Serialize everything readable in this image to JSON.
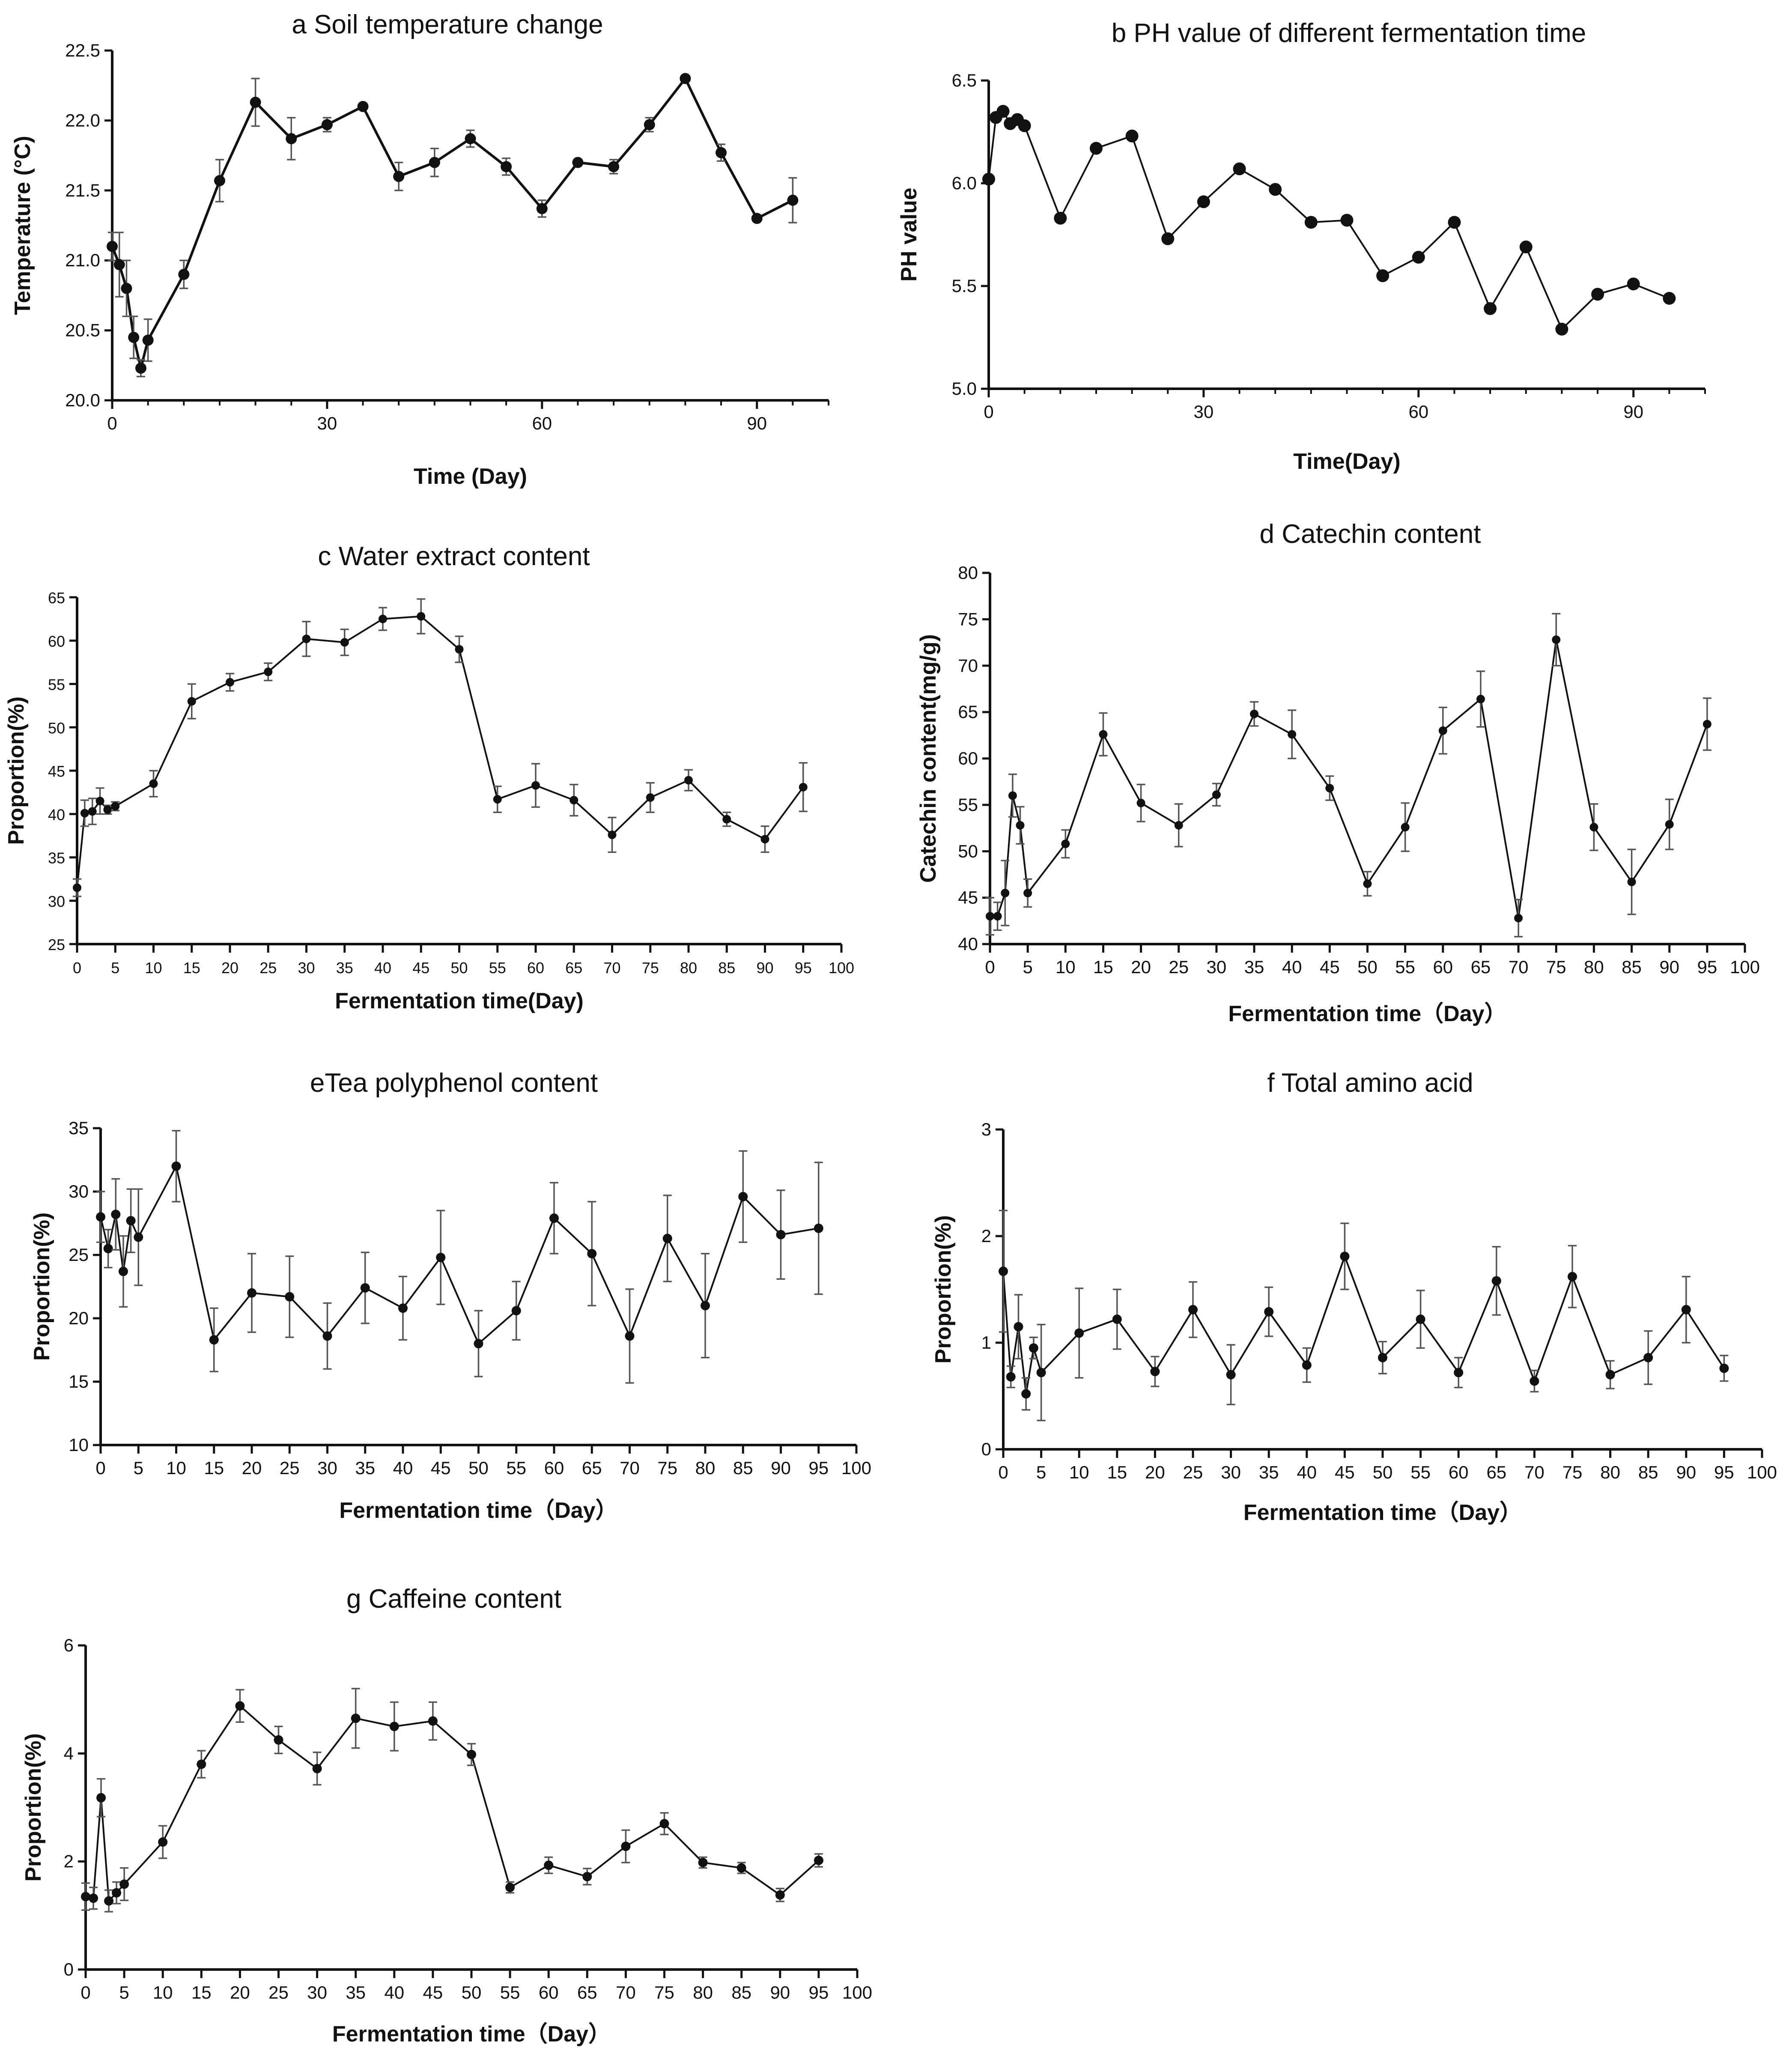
{
  "chart_data": [
    {
      "id": "a",
      "type": "line",
      "title": "a Soil temperature change",
      "xlabel": "Time (Day)",
      "ylabel": "Temperature (°C)",
      "xlim": [
        0,
        100
      ],
      "ylim": [
        20.0,
        22.5
      ],
      "xticks": [
        0,
        30,
        60,
        90
      ],
      "yticks": [
        20.0,
        20.5,
        21.0,
        21.5,
        22.0,
        22.5
      ],
      "ytick_labels": [
        "20.0",
        "20.5",
        "21.0",
        "21.5",
        "22.0",
        "22.5"
      ],
      "series": [
        {
          "name": "Temperature",
          "x": [
            0,
            1,
            2,
            3,
            4,
            5,
            10,
            15,
            20,
            25,
            30,
            35,
            40,
            45,
            50,
            55,
            60,
            65,
            70,
            75,
            80,
            85,
            90,
            95
          ],
          "values": [
            21.1,
            20.97,
            20.8,
            20.45,
            20.23,
            20.43,
            20.9,
            21.57,
            22.13,
            21.87,
            21.97,
            22.1,
            21.6,
            21.7,
            21.87,
            21.67,
            21.37,
            21.7,
            21.67,
            21.97,
            22.3,
            21.77,
            21.3,
            21.43
          ],
          "errors": [
            0.1,
            0.23,
            0.2,
            0.15,
            0.06,
            0.15,
            0.1,
            0.15,
            0.17,
            0.15,
            0.05,
            0.02,
            0.1,
            0.1,
            0.06,
            0.06,
            0.06,
            0.02,
            0.05,
            0.05,
            0.02,
            0.06,
            0.02,
            0.16
          ]
        }
      ]
    },
    {
      "id": "b",
      "type": "line",
      "title": "b PH value of different fermentation time",
      "xlabel": "Time(Day)",
      "ylabel": "PH value",
      "xlim": [
        0,
        100
      ],
      "ylim": [
        5.0,
        6.5
      ],
      "xticks": [
        0,
        30,
        60,
        90
      ],
      "yticks": [
        5.0,
        5.5,
        6.0,
        6.5
      ],
      "ytick_labels": [
        "5.0",
        "5.5",
        "6.0",
        "6.5"
      ],
      "series": [
        {
          "name": "PH",
          "x": [
            0,
            1,
            2,
            3,
            4,
            5,
            10,
            15,
            20,
            25,
            30,
            35,
            40,
            45,
            50,
            55,
            60,
            65,
            70,
            75,
            80,
            85,
            90,
            95
          ],
          "values": [
            6.02,
            6.32,
            6.35,
            6.29,
            6.31,
            6.28,
            5.83,
            6.17,
            6.23,
            5.73,
            5.91,
            6.07,
            5.97,
            5.81,
            5.82,
            5.55,
            5.64,
            5.81,
            5.39,
            5.69,
            5.29,
            5.46,
            5.51,
            5.44
          ],
          "errors": [
            0,
            0,
            0,
            0,
            0,
            0,
            0,
            0,
            0,
            0,
            0,
            0,
            0,
            0,
            0,
            0,
            0,
            0,
            0,
            0,
            0,
            0,
            0,
            0
          ]
        }
      ]
    },
    {
      "id": "c",
      "type": "line",
      "title": "c Water extract content",
      "xlabel": "Fermentation time(Day)",
      "ylabel": "Proportion(%)",
      "xlim": [
        0,
        100
      ],
      "ylim": [
        25,
        65
      ],
      "xticks": [
        0,
        5,
        10,
        15,
        20,
        25,
        30,
        35,
        40,
        45,
        50,
        55,
        60,
        65,
        70,
        75,
        80,
        85,
        90,
        95,
        100
      ],
      "yticks": [
        25,
        30,
        35,
        40,
        45,
        50,
        55,
        60,
        65
      ],
      "ytick_labels": [
        "25",
        "30",
        "35",
        "40",
        "45",
        "50",
        "55",
        "60",
        "65"
      ],
      "series": [
        {
          "name": "Water extract",
          "x": [
            0,
            1,
            2,
            3,
            4,
            5,
            10,
            15,
            20,
            25,
            30,
            35,
            40,
            45,
            50,
            55,
            60,
            65,
            70,
            75,
            80,
            85,
            90,
            95
          ],
          "values": [
            31.5,
            40.1,
            40.3,
            41.5,
            40.5,
            40.9,
            43.5,
            53.0,
            55.2,
            56.4,
            60.2,
            59.8,
            62.5,
            62.8,
            59.0,
            41.7,
            43.3,
            41.6,
            37.6,
            41.9,
            43.9,
            39.4,
            37.1,
            43.1
          ],
          "errors": [
            1.0,
            1.5,
            1.5,
            1.5,
            0.5,
            0.5,
            1.5,
            2.0,
            1.0,
            1.0,
            2.0,
            1.5,
            1.3,
            2.0,
            1.5,
            1.5,
            2.5,
            1.8,
            2.0,
            1.7,
            1.2,
            0.8,
            1.5,
            2.8
          ]
        }
      ]
    },
    {
      "id": "d",
      "type": "line",
      "title": "d Catechin content",
      "xlabel": "Fermentation time（Day）",
      "ylabel": "Catechin content(mg/g)",
      "xlim": [
        0,
        100
      ],
      "ylim": [
        40,
        80
      ],
      "xticks": [
        0,
        5,
        10,
        15,
        20,
        25,
        30,
        35,
        40,
        45,
        50,
        55,
        60,
        65,
        70,
        75,
        80,
        85,
        90,
        95,
        100
      ],
      "yticks": [
        40,
        45,
        50,
        55,
        60,
        65,
        70,
        75,
        80
      ],
      "ytick_labels": [
        "40",
        "45",
        "50",
        "55",
        "60",
        "65",
        "70",
        "75",
        "80"
      ],
      "series": [
        {
          "name": "Catechin",
          "x": [
            0,
            1,
            2,
            3,
            4,
            5,
            10,
            15,
            20,
            25,
            30,
            35,
            40,
            45,
            50,
            55,
            60,
            65,
            70,
            75,
            80,
            85,
            90,
            95
          ],
          "values": [
            43.0,
            43.0,
            45.5,
            56.0,
            52.8,
            45.5,
            50.8,
            62.6,
            55.2,
            52.8,
            56.1,
            64.8,
            62.6,
            56.8,
            46.5,
            52.6,
            63.0,
            66.4,
            42.8,
            72.8,
            52.6,
            46.7,
            52.9,
            63.7
          ],
          "errors": [
            2.0,
            1.5,
            3.5,
            2.3,
            2.0,
            1.5,
            1.5,
            2.3,
            2.0,
            2.3,
            1.2,
            1.3,
            2.6,
            1.3,
            1.3,
            2.6,
            2.5,
            3.0,
            2.0,
            2.8,
            2.5,
            3.5,
            2.7,
            2.8
          ]
        }
      ]
    },
    {
      "id": "e",
      "type": "line",
      "title": "eTea polyphenol content",
      "xlabel": "Fermentation time（Day）",
      "ylabel": "Proportion(%)",
      "xlim": [
        0,
        100
      ],
      "ylim": [
        10,
        35
      ],
      "xticks": [
        0,
        5,
        10,
        15,
        20,
        25,
        30,
        35,
        40,
        45,
        50,
        55,
        60,
        65,
        70,
        75,
        80,
        85,
        90,
        95,
        100
      ],
      "yticks": [
        10,
        15,
        20,
        25,
        30,
        35
      ],
      "ytick_labels": [
        "10",
        "15",
        "20",
        "25",
        "30",
        "35"
      ],
      "series": [
        {
          "name": "Tea polyphenol",
          "x": [
            0,
            1,
            2,
            3,
            4,
            5,
            10,
            15,
            20,
            25,
            30,
            35,
            40,
            45,
            50,
            55,
            60,
            65,
            70,
            75,
            80,
            85,
            90,
            95
          ],
          "values": [
            28.0,
            25.5,
            28.2,
            23.7,
            27.7,
            26.4,
            32.0,
            18.3,
            22.0,
            21.7,
            18.6,
            22.4,
            20.8,
            24.8,
            18.0,
            20.6,
            27.9,
            25.1,
            18.6,
            26.3,
            21.0,
            29.6,
            26.6,
            27.1
          ],
          "errors": [
            2.0,
            1.5,
            2.8,
            2.8,
            2.5,
            3.8,
            2.8,
            2.5,
            3.1,
            3.2,
            2.6,
            2.8,
            2.5,
            3.7,
            2.6,
            2.3,
            2.8,
            4.1,
            3.7,
            3.4,
            4.1,
            3.6,
            3.5,
            5.2
          ]
        }
      ]
    },
    {
      "id": "f",
      "type": "line",
      "title": "f Total amino acid",
      "xlabel": "Fermentation time（Day）",
      "ylabel": "Proportion(%)",
      "xlim": [
        0,
        100
      ],
      "ylim": [
        0,
        3
      ],
      "xticks": [
        0,
        5,
        10,
        15,
        20,
        25,
        30,
        35,
        40,
        45,
        50,
        55,
        60,
        65,
        70,
        75,
        80,
        85,
        90,
        95,
        100
      ],
      "yticks": [
        0,
        1,
        2,
        3
      ],
      "ytick_labels": [
        "0",
        "1",
        "2",
        "3"
      ],
      "series": [
        {
          "name": "Total amino acid",
          "x": [
            0,
            1,
            2,
            3,
            4,
            5,
            10,
            15,
            20,
            25,
            30,
            35,
            40,
            45,
            50,
            55,
            60,
            65,
            70,
            75,
            80,
            85,
            90,
            95
          ],
          "values": [
            1.67,
            0.68,
            1.15,
            0.52,
            0.95,
            0.72,
            1.09,
            1.22,
            0.73,
            1.31,
            0.7,
            1.29,
            0.79,
            1.81,
            0.86,
            1.22,
            0.72,
            1.58,
            0.64,
            1.62,
            0.7,
            0.86,
            1.31,
            0.76
          ],
          "errors": [
            0.57,
            0.1,
            0.3,
            0.15,
            0.1,
            0.45,
            0.42,
            0.28,
            0.14,
            0.26,
            0.28,
            0.23,
            0.16,
            0.31,
            0.15,
            0.27,
            0.14,
            0.32,
            0.1,
            0.29,
            0.13,
            0.25,
            0.31,
            0.12
          ]
        }
      ]
    },
    {
      "id": "g",
      "type": "line",
      "title": "g Caffeine content",
      "xlabel": "Fermentation time（Day）",
      "ylabel": "Proportion(%)",
      "xlim": [
        0,
        100
      ],
      "ylim": [
        0,
        6
      ],
      "xticks": [
        0,
        5,
        10,
        15,
        20,
        25,
        30,
        35,
        40,
        45,
        50,
        55,
        60,
        65,
        70,
        75,
        80,
        85,
        90,
        95,
        100
      ],
      "yticks": [
        0,
        2,
        4,
        6
      ],
      "ytick_labels": [
        "0",
        "2",
        "4",
        "6"
      ],
      "series": [
        {
          "name": "Caffeine",
          "x": [
            0,
            1,
            2,
            3,
            4,
            5,
            10,
            15,
            20,
            25,
            30,
            35,
            40,
            45,
            50,
            55,
            60,
            65,
            70,
            75,
            80,
            85,
            90,
            95
          ],
          "values": [
            1.35,
            1.32,
            3.18,
            1.27,
            1.42,
            1.58,
            2.36,
            3.8,
            4.88,
            4.25,
            3.72,
            4.65,
            4.5,
            4.6,
            3.98,
            1.52,
            1.93,
            1.72,
            2.28,
            2.7,
            1.98,
            1.88,
            1.38,
            2.02
          ],
          "errors": [
            0.25,
            0.2,
            0.35,
            0.2,
            0.2,
            0.3,
            0.3,
            0.25,
            0.3,
            0.25,
            0.3,
            0.55,
            0.45,
            0.35,
            0.2,
            0.1,
            0.15,
            0.15,
            0.3,
            0.2,
            0.1,
            0.1,
            0.12,
            0.12
          ]
        }
      ]
    }
  ]
}
